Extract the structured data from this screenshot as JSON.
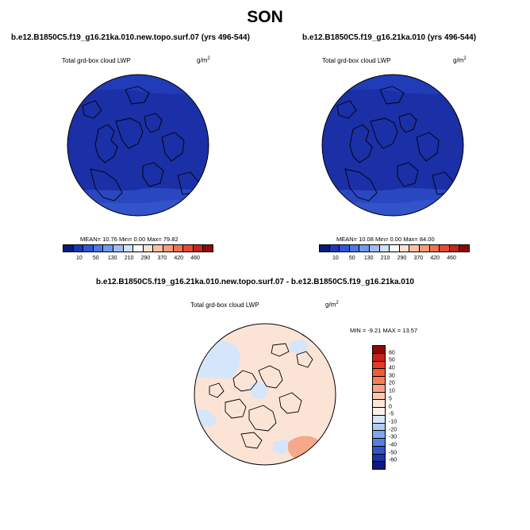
{
  "figure": {
    "title": "SON",
    "panels": [
      {
        "title": "b.e12.B1850C5.f19_g16.21ka.010.new.topo.surf.07 (yrs 496-544)",
        "variable": "Total grd-box cloud LWP",
        "units_base": "g/m",
        "units_exp": "2",
        "stats": "MEAN= 10.76  Min=  0.00  Max= 79.82",
        "colorbar": {
          "labels": [
            "10",
            "50",
            "130",
            "210",
            "290",
            "370",
            "420",
            "460"
          ],
          "colors": [
            "#0a1a7a",
            "#1e36b8",
            "#2f56d6",
            "#4a78e8",
            "#6f98ee",
            "#9ebcf5",
            "#cfe0fb",
            "#fbfbfb",
            "#fde0d0",
            "#fcbfa0",
            "#fa9a78",
            "#f4714f",
            "#e9482d",
            "#c8251a",
            "#8b0a0a"
          ]
        }
      },
      {
        "title": "b.e12.B1850C5.f19_g16.21ka.010 (yrs 496-544)",
        "variable": "Total grd-box cloud LWP",
        "units_base": "g/m",
        "units_exp": "2",
        "stats": "MEAN= 10.08  Min=  0.00  Max= 84.00",
        "colorbar": {
          "labels": [
            "10",
            "50",
            "130",
            "210",
            "290",
            "370",
            "420",
            "460"
          ],
          "colors": [
            "#0a1a7a",
            "#1e36b8",
            "#2f56d6",
            "#4a78e8",
            "#6f98ee",
            "#9ebcf5",
            "#cfe0fb",
            "#fbfbfb",
            "#fde0d0",
            "#fcbfa0",
            "#fa9a78",
            "#f4714f",
            "#e9482d",
            "#c8251a",
            "#8b0a0a"
          ]
        }
      }
    ],
    "difference": {
      "title": "b.e12.B1850C5.f19_g16.21ka.010.new.topo.surf.07 - b.e12.B1850C5.f19_g16.21ka.010",
      "variable": "Total grd-box cloud LWP",
      "units_base": "g/m",
      "units_exp": "2",
      "stats": "MIN = -9.21 MAX = 13.57",
      "colorbar": {
        "labels": [
          "60",
          "50",
          "40",
          "30",
          "20",
          "10",
          "5",
          "0",
          "-5",
          "-10",
          "-20",
          "-30",
          "-40",
          "-50",
          "-60"
        ],
        "colors": [
          "#8b0a0a",
          "#c8201a",
          "#e43a22",
          "#f25a33",
          "#f77f58",
          "#f9a382",
          "#fcc8ad",
          "#fde6d8",
          "#fbf2ec",
          "#d6e6fa",
          "#adcbf4",
          "#7fa6ea",
          "#5680df",
          "#2f55cc",
          "#1b33a8",
          "#0c1a80"
        ]
      }
    },
    "colors": {
      "ocean_dark": "#1b2fa6",
      "ocean_band": "#213cb9",
      "ocean_light": "#3353c8",
      "diff_neutral": "#fbe4d6",
      "diff_blue": "#d6e6fa",
      "diff_red": "#f5a88a"
    }
  }
}
